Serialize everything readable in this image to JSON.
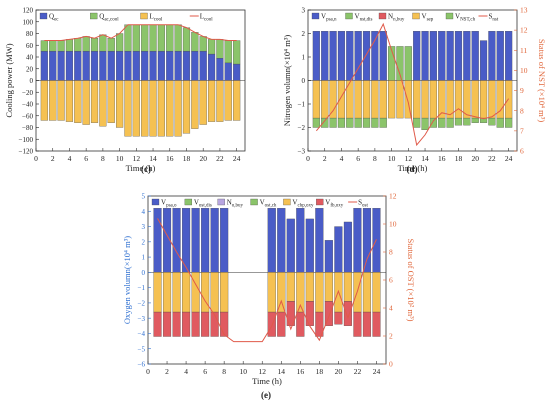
{
  "chart_data": [
    {
      "id": "c",
      "type": "bar",
      "caption": "(c)",
      "xlabel": "Time (h)",
      "ylabel": "Cooling power (MW)",
      "xlim": [
        0,
        25
      ],
      "ylim": [
        -120,
        120
      ],
      "xticks": [
        0,
        2,
        4,
        6,
        8,
        10,
        12,
        14,
        16,
        18,
        20,
        22,
        24
      ],
      "yticks": [
        -120,
        -100,
        -80,
        -60,
        -40,
        -20,
        0,
        20,
        40,
        60,
        80,
        100,
        120
      ],
      "grid": false,
      "legend_position": "top",
      "x": [
        1,
        2,
        3,
        4,
        5,
        6,
        7,
        8,
        9,
        10,
        11,
        12,
        13,
        14,
        15,
        16,
        17,
        18,
        19,
        20,
        21,
        22,
        23,
        24
      ],
      "stacked_positive": [
        {
          "name": "Q_ec",
          "color": "#4A5CC7",
          "values": [
            50,
            50,
            50,
            50,
            50,
            50,
            50,
            50,
            50,
            50,
            50,
            50,
            50,
            50,
            50,
            50,
            50,
            50,
            50,
            50,
            45,
            38,
            30,
            28
          ]
        },
        {
          "name": "Q_ac,cool",
          "color": "#8BC46A",
          "values": [
            18,
            18,
            18,
            20,
            22,
            25,
            22,
            28,
            22,
            30,
            45,
            45,
            45,
            45,
            45,
            45,
            45,
            40,
            32,
            25,
            25,
            32,
            38,
            40
          ]
        }
      ],
      "stacked_negative": [
        {
          "name": "L_cool",
          "color": "#F5C152",
          "values": [
            -68,
            -68,
            -68,
            -70,
            -72,
            -75,
            -72,
            -78,
            -72,
            -80,
            -95,
            -95,
            -95,
            -95,
            -95,
            -95,
            -95,
            -90,
            -82,
            -75,
            -70,
            -70,
            -68,
            -68
          ]
        }
      ],
      "line": {
        "name": "L_cool",
        "color": "#E05A4A",
        "values": [
          68,
          68,
          68,
          70,
          72,
          75,
          72,
          78,
          72,
          80,
          95,
          95,
          95,
          95,
          95,
          95,
          95,
          90,
          82,
          75,
          70,
          70,
          68,
          68
        ]
      },
      "legend": [
        {
          "label": "Q",
          "sub": "ec",
          "kind": "box",
          "color": "#4A5CC7"
        },
        {
          "label": "Q",
          "sub": "ac,cool",
          "kind": "box",
          "color": "#8BC46A"
        },
        {
          "label": "L",
          "sub": "cool",
          "kind": "box",
          "color": "#F5C152"
        },
        {
          "label": "L",
          "sub": "cool",
          "kind": "line",
          "color": "#E05A4A"
        }
      ]
    },
    {
      "id": "d",
      "type": "bar",
      "caption": "(d)",
      "xlabel": "Time (h)",
      "ylabel": "Nitrogen volumn(×10⁴ m³)",
      "y2label": "Status of NST (×10⁴ m³)",
      "xlim": [
        0,
        25
      ],
      "ylim": [
        -3,
        3
      ],
      "y2lim": [
        6,
        13
      ],
      "xticks": [
        0,
        2,
        4,
        6,
        8,
        10,
        12,
        14,
        16,
        18,
        20,
        22,
        24
      ],
      "yticks": [
        -3,
        -2,
        -1,
        0,
        1,
        2,
        3
      ],
      "y2ticks": [
        6,
        7,
        8,
        9,
        10,
        11,
        12,
        13
      ],
      "grid": false,
      "legend_position": "top",
      "x": [
        1,
        2,
        3,
        4,
        5,
        6,
        7,
        8,
        9,
        10,
        11,
        12,
        13,
        14,
        15,
        16,
        17,
        18,
        19,
        20,
        21,
        22,
        23,
        24
      ],
      "stacked_positive": [
        {
          "name": "V_psa,n",
          "color": "#4A5CC7",
          "values": [
            2.1,
            2.1,
            2.1,
            2.1,
            2.1,
            2.1,
            2.1,
            2.1,
            2.1,
            0,
            0,
            0,
            2.1,
            2.1,
            2.1,
            2.1,
            2.1,
            2.1,
            2.1,
            2.1,
            1.7,
            2.1,
            2.1,
            2.1
          ]
        },
        {
          "name": "V_nst,dis",
          "color": "#8BC46A",
          "values": [
            0,
            0,
            0,
            0,
            0,
            0,
            0,
            0,
            0,
            1.45,
            1.45,
            1.45,
            0,
            0,
            0,
            0,
            0,
            0,
            0,
            0,
            0,
            0,
            0,
            0
          ]
        }
      ],
      "stacked_negative": [
        {
          "name": "V_sep",
          "color": "#F5C152",
          "values": [
            -1.6,
            -1.6,
            -1.6,
            -1.6,
            -1.6,
            -1.6,
            -1.6,
            -1.6,
            -1.6,
            -1.6,
            -1.6,
            -1.6,
            -1.6,
            -1.6,
            -1.6,
            -1.6,
            -1.6,
            -1.6,
            -1.6,
            -1.6,
            -1.6,
            -1.6,
            -1.6,
            -1.6
          ]
        },
        {
          "name": "V_NST,ch",
          "color": "#8BC46A",
          "values": [
            -0.4,
            -0.4,
            -0.4,
            -0.4,
            -0.4,
            -0.4,
            -0.4,
            -0.4,
            -0.4,
            0,
            0,
            0,
            -0.4,
            -0.5,
            -0.4,
            -0.4,
            -0.4,
            -0.3,
            -0.3,
            -0.2,
            -0.2,
            -0.3,
            -0.4,
            -0.4
          ]
        }
      ],
      "line": {
        "name": "S_nst",
        "color": "#E05A4A",
        "axis": "right",
        "values": [
          7.0,
          7.5,
          8.0,
          8.7,
          9.4,
          10.1,
          10.8,
          11.5,
          12.3,
          11.0,
          9.8,
          8.4,
          6.3,
          6.8,
          7.5,
          7.9,
          7.8,
          8.1,
          7.8,
          7.7,
          7.6,
          7.7,
          8.0,
          8.6
        ]
      },
      "legend": [
        {
          "label": "V",
          "sub": "psa,n",
          "kind": "box",
          "color": "#4A5CC7"
        },
        {
          "label": "V",
          "sub": "nst,dis",
          "kind": "box",
          "color": "#8BC46A"
        },
        {
          "label": "N",
          "sub": "n,buy",
          "kind": "box",
          "color": "#E05A60"
        },
        {
          "label": "V",
          "sub": "sep",
          "kind": "box",
          "color": "#F5C152"
        },
        {
          "label": "V",
          "sub": "NST,ch",
          "kind": "box",
          "color": "#8BC46A"
        },
        {
          "label": "S",
          "sub": "nst",
          "kind": "line",
          "color": "#E05A4A"
        }
      ]
    },
    {
      "id": "e",
      "type": "bar",
      "caption": "(e)",
      "xlabel": "Time (h)",
      "ylabel": "Oxygen volumn(×10⁴ m³)",
      "y2label": "Status of OST (×10² m³)",
      "xlim": [
        0,
        25
      ],
      "ylim": [
        -6,
        5
      ],
      "y2lim": [
        0,
        12
      ],
      "xticks": [
        0,
        2,
        4,
        6,
        8,
        10,
        12,
        14,
        16,
        18,
        20,
        22,
        24
      ],
      "yticks": [
        -6,
        -5,
        -4,
        -3,
        -2,
        -1,
        0,
        1,
        2,
        3,
        4,
        5
      ],
      "y2ticks": [
        0,
        2,
        4,
        6,
        8,
        10,
        12
      ],
      "grid": false,
      "legend_position": "top",
      "x": [
        1,
        2,
        3,
        4,
        5,
        6,
        7,
        8,
        9,
        10,
        11,
        12,
        13,
        14,
        15,
        16,
        17,
        18,
        19,
        20,
        21,
        22,
        23,
        24
      ],
      "stacked_positive": [
        {
          "name": "V_psa,o",
          "color": "#4A5CC7",
          "values": [
            4.2,
            4.2,
            4.2,
            4.2,
            4.2,
            4.2,
            4.2,
            4.2,
            0,
            0,
            0,
            0,
            4.2,
            4.2,
            3.5,
            4.2,
            3.5,
            4.2,
            2.1,
            3.0,
            3.3,
            4.2,
            4.2,
            4.2
          ]
        }
      ],
      "stacked_negative": [
        {
          "name": "V_chp,oxy",
          "color": "#F5C152",
          "values": [
            -2.6,
            -2.6,
            -2.6,
            -2.6,
            -2.6,
            -2.6,
            -2.6,
            -2.6,
            0,
            0,
            0,
            0,
            -2.6,
            -2.6,
            -1.9,
            -2.6,
            -1.9,
            -2.6,
            -1.9,
            -2.6,
            -1.9,
            -2.6,
            -2.6,
            -2.6
          ]
        },
        {
          "name": "V_fb,oxy",
          "color": "#E05A60",
          "values": [
            -1.6,
            -1.6,
            -1.6,
            -1.6,
            -1.6,
            -1.6,
            -1.6,
            -1.6,
            0,
            0,
            0,
            0,
            -1.6,
            -1.6,
            -1.6,
            -1.6,
            -1.6,
            -1.6,
            -1.6,
            -0.8,
            -1.6,
            -1.6,
            -1.6,
            -1.6
          ]
        }
      ],
      "line": {
        "name": "S_ost",
        "color": "#E05A4A",
        "axis": "right",
        "values": [
          10.4,
          9.2,
          8.0,
          6.9,
          5.7,
          4.5,
          3.5,
          2.1,
          1.6,
          1.6,
          1.6,
          1.6,
          2.7,
          4.5,
          2.5,
          4.2,
          2.7,
          1.7,
          3.4,
          5.2,
          3.3,
          5.2,
          7.5,
          8.9
        ]
      },
      "legend": [
        {
          "label": "V",
          "sub": "psa,o",
          "kind": "box",
          "color": "#4A5CC7"
        },
        {
          "label": "V",
          "sub": "ost,dis",
          "kind": "box",
          "color": "#8BC46A"
        },
        {
          "label": "N",
          "sub": "o,buy",
          "kind": "box",
          "color": "#B8A6E0"
        },
        {
          "label": "V",
          "sub": "ost,ch",
          "kind": "box",
          "color": "#8BC46A"
        },
        {
          "label": "V",
          "sub": "chp,oxy",
          "kind": "box",
          "color": "#F5C152"
        },
        {
          "label": "V",
          "sub": "fb,oxy",
          "kind": "box",
          "color": "#E05A60"
        },
        {
          "label": "S",
          "sub": "ost",
          "kind": "line",
          "color": "#E05A4A"
        }
      ]
    }
  ]
}
